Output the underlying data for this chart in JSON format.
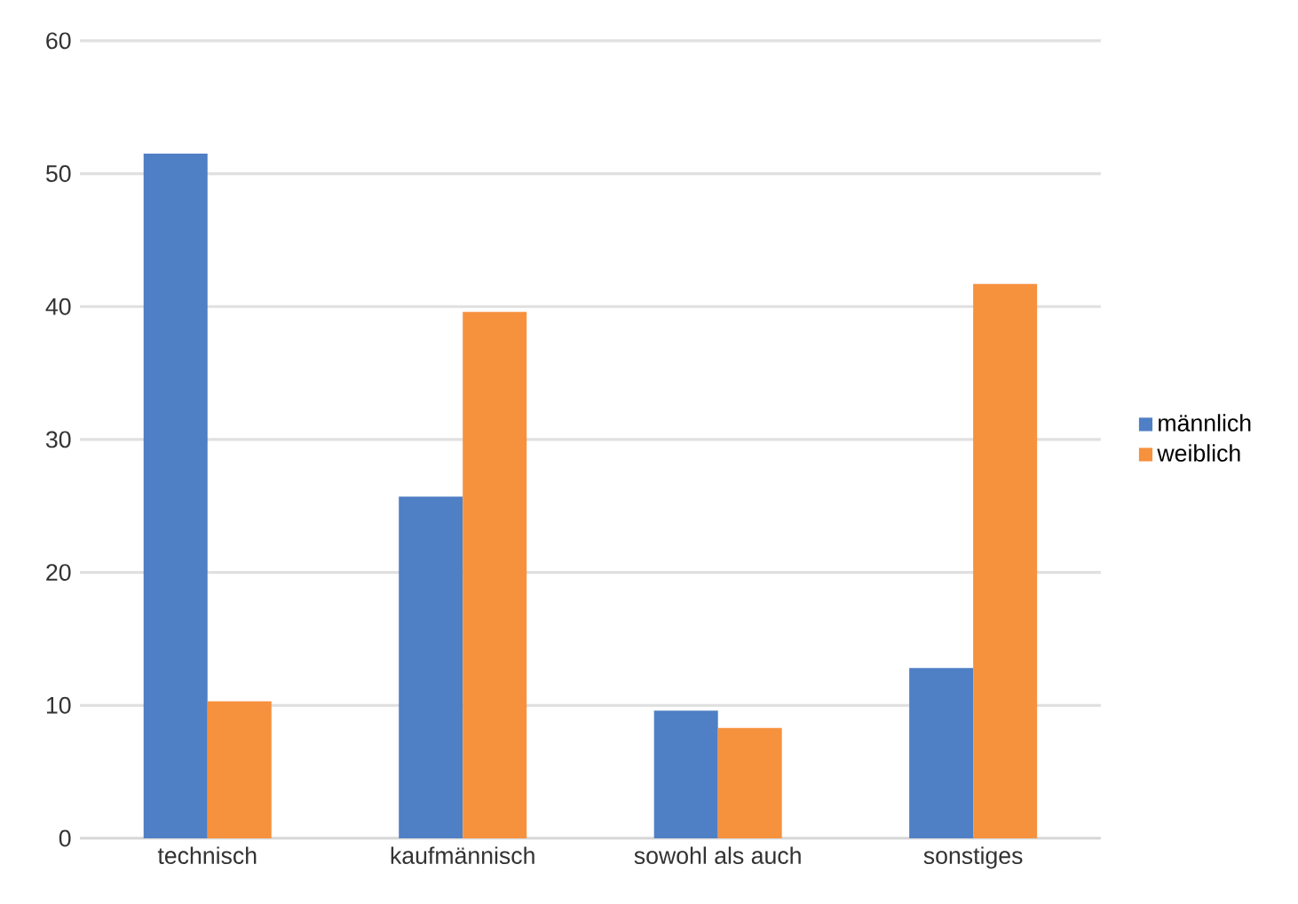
{
  "chart_data": {
    "type": "bar",
    "categories": [
      "technisch",
      "kaufmännisch",
      "sowohl als auch",
      "sonstiges"
    ],
    "series": [
      {
        "name": "männlich",
        "color": "#4f7fc4",
        "values": [
          51.5,
          25.7,
          9.6,
          12.8
        ]
      },
      {
        "name": "weiblich",
        "color": "#f6913e",
        "values": [
          10.3,
          39.6,
          8.3,
          41.7
        ]
      }
    ],
    "ylim": [
      0,
      60
    ],
    "yticks": [
      0,
      10,
      20,
      30,
      40,
      50,
      60
    ],
    "grid": "y",
    "legend": "right"
  }
}
